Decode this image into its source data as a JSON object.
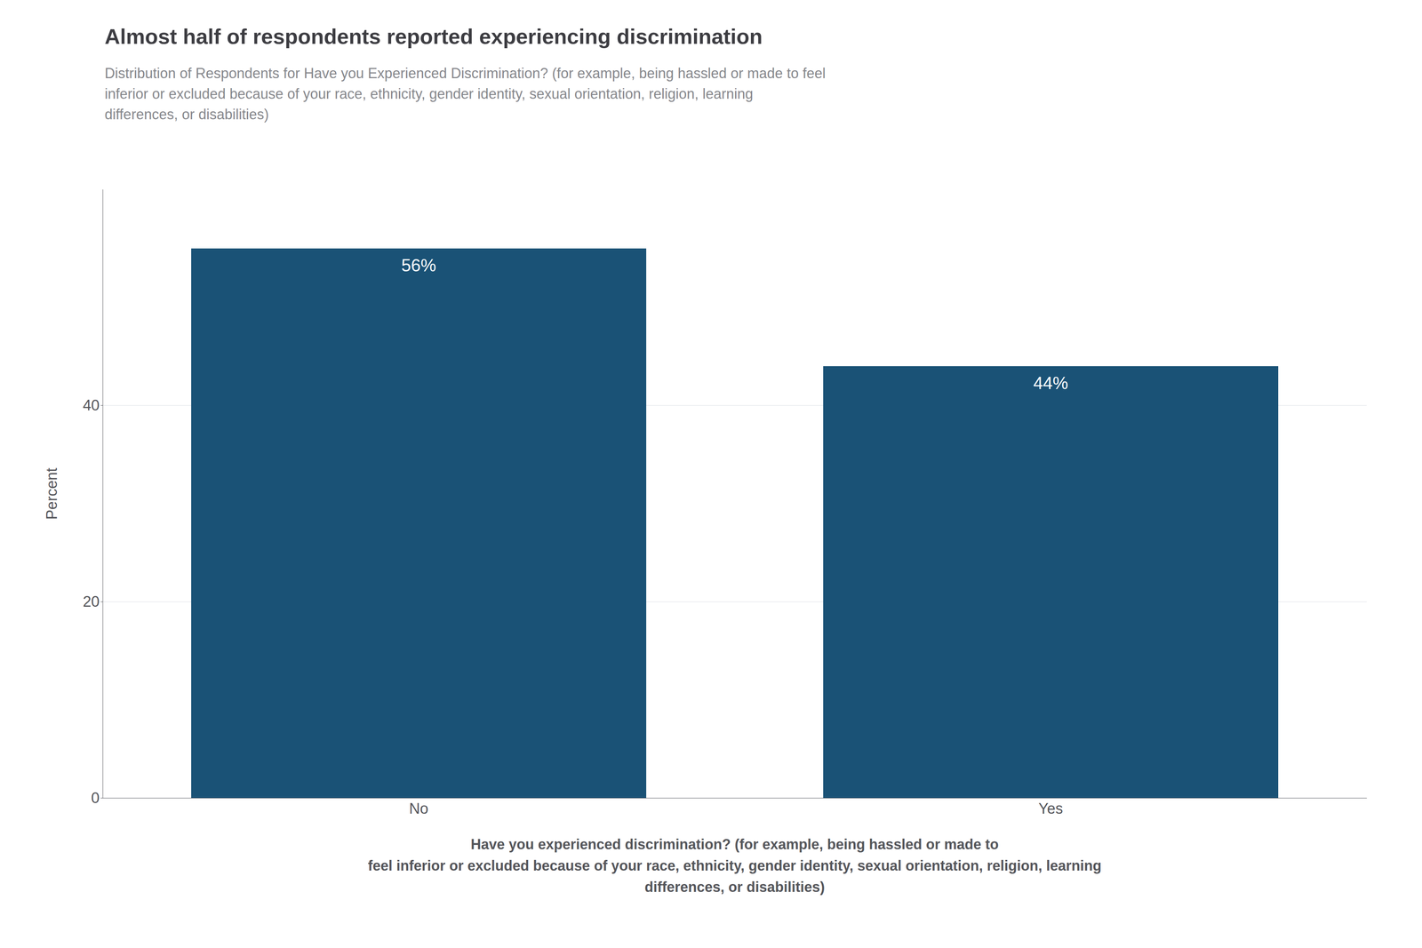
{
  "chart_data": {
    "type": "bar",
    "title": "Almost half of respondents reported experiencing discrimination",
    "subtitle": "Distribution of Respondents for Have you Experienced Discrimination? (for example, being hassled or made to feel\ninferior or excluded because of your race, ethnicity, gender identity, sexual orientation, religion, learning\ndifferences, or disabilities)",
    "categories": [
      "No",
      "Yes"
    ],
    "values": [
      56,
      44
    ],
    "value_labels": [
      "56%",
      "44%"
    ],
    "data_labels": true,
    "color": "#1a5276",
    "ylabel": "Percent",
    "xlabel": "Have you experienced discrimination? (for example, being hassled or made to\nfeel inferior or excluded because of your race, ethnicity, gender identity, sexual orientation, religion, learning\ndifferences, or disabilities)",
    "ylim": [
      0,
      62
    ],
    "yticks": [
      0,
      20,
      40
    ],
    "grid": true
  }
}
